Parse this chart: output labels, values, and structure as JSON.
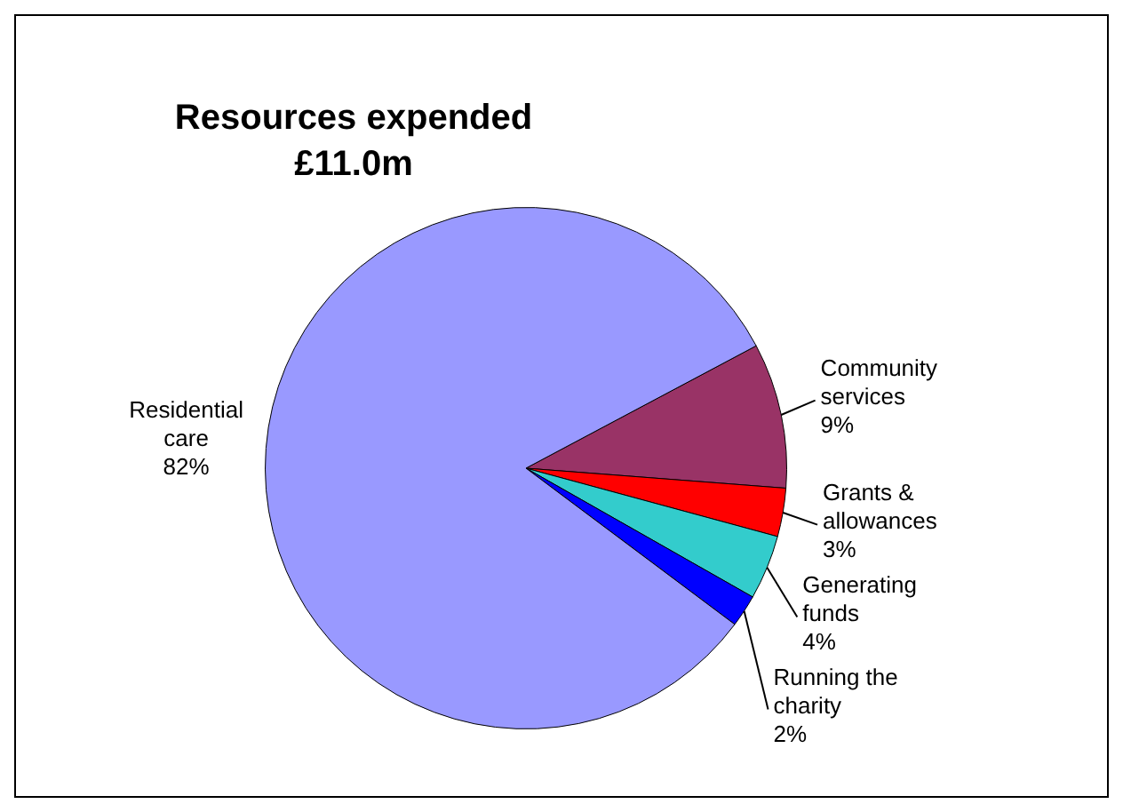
{
  "chart_data": {
    "type": "pie",
    "title": "Resources expended",
    "subtitle": "£11.0m",
    "categories": [
      "Community services",
      "Grants & allowances",
      "Generating funds",
      "Running the charity",
      "Residential care"
    ],
    "values": [
      9,
      3,
      4,
      2,
      82
    ],
    "colors": [
      "#993366",
      "#ff0000",
      "#33cccc",
      "#0000ff",
      "#9999ff"
    ],
    "value_labels": [
      "9%",
      "3%",
      "4%",
      "2%",
      "82%"
    ],
    "legend": false
  }
}
